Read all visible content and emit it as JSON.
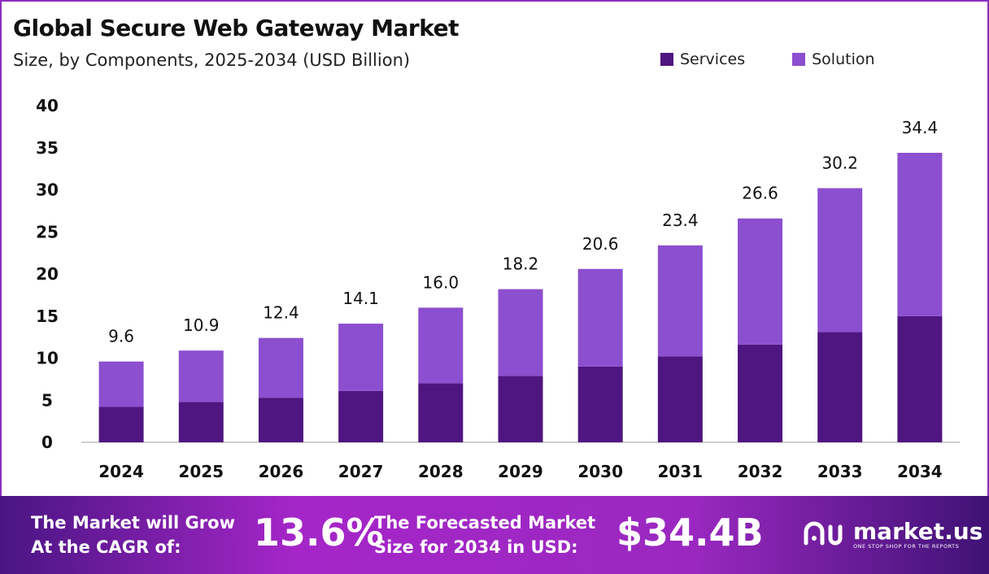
{
  "chart_data": {
    "type": "bar",
    "stacked": true,
    "title": "Global Secure Web Gateway Market",
    "subtitle": "Size, by Components, 2025-2034 (USD Billion)",
    "categories": [
      "2024",
      "2025",
      "2026",
      "2027",
      "2028",
      "2029",
      "2030",
      "2031",
      "2032",
      "2033",
      "2034"
    ],
    "series": [
      {
        "name": "Services",
        "color": "#4f1580",
        "values": [
          4.2,
          4.8,
          5.3,
          6.1,
          7.0,
          7.9,
          9.0,
          10.2,
          11.6,
          13.1,
          15.0
        ]
      },
      {
        "name": "Solution",
        "color": "#8c4fcf",
        "values": [
          5.4,
          6.1,
          7.1,
          8.0,
          9.0,
          10.3,
          11.6,
          13.2,
          15.0,
          17.1,
          19.4
        ]
      }
    ],
    "totals": [
      "9.6",
      "10.9",
      "12.4",
      "14.1",
      "16.0",
      "18.2",
      "20.6",
      "23.4",
      "26.6",
      "30.2",
      "34.4"
    ],
    "yticks": [
      "0",
      "5",
      "10",
      "15",
      "20",
      "25",
      "30",
      "35",
      "40"
    ],
    "ylim": [
      0,
      40
    ],
    "grid": false,
    "legend_position": "top-right"
  },
  "footer": {
    "cagr_label_line1": "The Market will Grow",
    "cagr_label_line2": "At the CAGR of:",
    "cagr_value": "13.6%",
    "forecast_label_line1": "The Forecasted Market",
    "forecast_label_line2": "Size for 2034 in USD:",
    "forecast_value": "$34.4B",
    "logo_name": "market.us",
    "logo_tagline": "ONE STOP SHOP FOR THE REPORTS"
  }
}
